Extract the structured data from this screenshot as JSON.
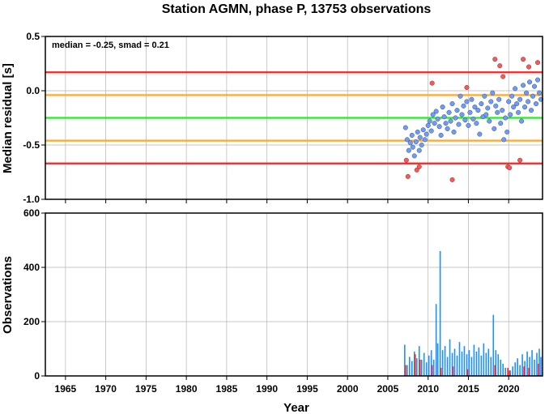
{
  "chart_data": [
    {
      "panel": "residuals",
      "type": "scatter",
      "title": "Station AGMN, phase P, 13753 observations",
      "ylabel": "Median residual [s]",
      "annotation": "median = -0.25, smad = 0.21",
      "xlim": [
        1962.5,
        2024.2
      ],
      "ylim": [
        -1.0,
        0.5
      ],
      "yticks": [
        "0.5",
        "0.0",
        "-0.5",
        "-1.0"
      ],
      "grid": true,
      "reference_lines": [
        {
          "y": 0.17,
          "color": "#ff2222"
        },
        {
          "y": -0.04,
          "color": "#ffaa22"
        },
        {
          "y": -0.25,
          "color": "#22ee22"
        },
        {
          "y": -0.46,
          "color": "#ffaa22"
        },
        {
          "y": -0.67,
          "color": "#ff2222"
        }
      ],
      "series": [
        {
          "color": "#6a9cff",
          "points": [
            [
              2007.2,
              -0.34
            ],
            [
              2007.4,
              -0.45
            ],
            [
              2007.6,
              -0.55
            ],
            [
              2007.8,
              -0.48
            ],
            [
              2008.0,
              -0.41
            ],
            [
              2008.1,
              -0.52
            ],
            [
              2008.3,
              -0.6
            ],
            [
              2008.5,
              -0.47
            ],
            [
              2008.7,
              -0.38
            ],
            [
              2008.9,
              -0.55
            ],
            [
              2009.0,
              -0.43
            ],
            [
              2009.2,
              -0.5
            ],
            [
              2009.4,
              -0.36
            ],
            [
              2009.6,
              -0.45
            ],
            [
              2009.8,
              -0.4
            ],
            [
              2010.0,
              -0.32
            ],
            [
              2010.2,
              -0.28
            ],
            [
              2010.4,
              -0.37
            ],
            [
              2010.6,
              -0.22
            ],
            [
              2010.8,
              -0.3
            ],
            [
              2011.0,
              -0.19
            ],
            [
              2011.2,
              -0.26
            ],
            [
              2011.4,
              -0.33
            ],
            [
              2011.6,
              -0.41
            ],
            [
              2011.8,
              -0.15
            ],
            [
              2012.0,
              -0.24
            ],
            [
              2012.2,
              -0.3
            ],
            [
              2012.4,
              -0.35
            ],
            [
              2012.6,
              -0.2
            ],
            [
              2012.8,
              -0.28
            ],
            [
              2013.0,
              -0.12
            ],
            [
              2013.2,
              -0.38
            ],
            [
              2013.4,
              -0.25
            ],
            [
              2013.6,
              -0.18
            ],
            [
              2013.8,
              -0.31
            ],
            [
              2014.0,
              -0.05
            ],
            [
              2014.2,
              -0.22
            ],
            [
              2014.4,
              -0.14
            ],
            [
              2014.6,
              -0.27
            ],
            [
              2014.8,
              -0.1
            ],
            [
              2015.0,
              -0.32
            ],
            [
              2015.2,
              -0.2
            ],
            [
              2015.4,
              -0.08
            ],
            [
              2015.6,
              -0.26
            ],
            [
              2015.8,
              -0.15
            ],
            [
              2016.0,
              -0.3
            ],
            [
              2016.2,
              -0.18
            ],
            [
              2016.4,
              -0.4
            ],
            [
              2016.6,
              -0.12
            ],
            [
              2016.8,
              -0.24
            ],
            [
              2017.0,
              -0.05
            ],
            [
              2017.2,
              -0.22
            ],
            [
              2017.4,
              -0.16
            ],
            [
              2017.6,
              -0.28
            ],
            [
              2017.8,
              -0.1
            ],
            [
              2018.0,
              -0.02
            ],
            [
              2018.2,
              -0.35
            ],
            [
              2018.4,
              -0.14
            ],
            [
              2018.6,
              -0.2
            ],
            [
              2018.8,
              -0.08
            ],
            [
              2019.0,
              -0.3
            ],
            [
              2019.2,
              -0.18
            ],
            [
              2019.4,
              -0.45
            ],
            [
              2019.6,
              -0.25
            ],
            [
              2019.8,
              -0.38
            ],
            [
              2020.0,
              -0.1
            ],
            [
              2020.2,
              -0.22
            ],
            [
              2020.4,
              -0.05
            ],
            [
              2020.6,
              -0.15
            ],
            [
              2020.8,
              0.02
            ],
            [
              2021.0,
              -0.12
            ],
            [
              2021.2,
              -0.2
            ],
            [
              2021.4,
              -0.08
            ],
            [
              2021.6,
              -0.28
            ],
            [
              2021.8,
              0.05
            ],
            [
              2022.0,
              -0.15
            ],
            [
              2022.2,
              -0.02
            ],
            [
              2022.4,
              -0.1
            ],
            [
              2022.6,
              0.08
            ],
            [
              2022.8,
              -0.18
            ],
            [
              2023.0,
              -0.05
            ],
            [
              2023.2,
              0.04
            ],
            [
              2023.4,
              -0.12
            ],
            [
              2023.6,
              0.1
            ],
            [
              2023.8,
              -0.02
            ],
            [
              2024.0,
              -0.08
            ]
          ]
        },
        {
          "color": "#ff5555",
          "points": [
            [
              2007.3,
              -0.64
            ],
            [
              2007.5,
              -0.79
            ],
            [
              2008.6,
              -0.73
            ],
            [
              2008.9,
              -0.7
            ],
            [
              2010.5,
              0.07
            ],
            [
              2013.0,
              -0.82
            ],
            [
              2014.8,
              0.03
            ],
            [
              2018.3,
              0.29
            ],
            [
              2018.9,
              0.23
            ],
            [
              2019.3,
              0.13
            ],
            [
              2019.9,
              -0.7
            ],
            [
              2020.1,
              -0.71
            ],
            [
              2021.8,
              0.29
            ],
            [
              2022.5,
              0.22
            ],
            [
              2023.6,
              0.26
            ],
            [
              2021.4,
              -0.64
            ]
          ]
        }
      ]
    },
    {
      "panel": "observations",
      "type": "bar",
      "ylabel": "Observations",
      "xlabel": "Year",
      "xlim": [
        1962.5,
        2024.2
      ],
      "ylim": [
        0,
        600
      ],
      "yticks": [
        "600",
        "400",
        "200",
        "0"
      ],
      "xticks": [
        "1965",
        "1970",
        "1975",
        "1980",
        "1985",
        "1990",
        "1995",
        "2000",
        "2005",
        "2010",
        "2015",
        "2020"
      ],
      "grid": true,
      "colors": {
        "normal": "#1e8fff",
        "outlier": "#ff2222"
      },
      "bars": [
        [
          2007.1,
          115
        ],
        [
          2007.4,
          40
        ],
        [
          2007.7,
          70
        ],
        [
          2008.0,
          55
        ],
        [
          2008.3,
          90
        ],
        [
          2008.6,
          65
        ],
        [
          2008.9,
          110
        ],
        [
          2009.2,
          60
        ],
        [
          2009.5,
          85
        ],
        [
          2009.8,
          50
        ],
        [
          2010.1,
          75
        ],
        [
          2010.4,
          95
        ],
        [
          2010.7,
          60
        ],
        [
          2011.0,
          265
        ],
        [
          2011.2,
          120
        ],
        [
          2011.5,
          460
        ],
        [
          2011.8,
          95
        ],
        [
          2012.1,
          110
        ],
        [
          2012.4,
          70
        ],
        [
          2012.7,
          135
        ],
        [
          2013.0,
          85
        ],
        [
          2013.3,
          100
        ],
        [
          2013.6,
          75
        ],
        [
          2013.9,
          125
        ],
        [
          2014.2,
          90
        ],
        [
          2014.5,
          110
        ],
        [
          2014.8,
          80
        ],
        [
          2015.1,
          95
        ],
        [
          2015.4,
          70
        ],
        [
          2015.7,
          115
        ],
        [
          2016.0,
          90
        ],
        [
          2016.3,
          105
        ],
        [
          2016.6,
          75
        ],
        [
          2016.9,
          120
        ],
        [
          2017.2,
          85
        ],
        [
          2017.5,
          100
        ],
        [
          2017.8,
          70
        ],
        [
          2018.1,
          225
        ],
        [
          2018.4,
          95
        ],
        [
          2018.7,
          80
        ],
        [
          2019.0,
          60
        ],
        [
          2019.3,
          45
        ],
        [
          2019.6,
          30
        ],
        [
          2019.9,
          25
        ],
        [
          2020.2,
          20
        ],
        [
          2020.5,
          35
        ],
        [
          2020.8,
          50
        ],
        [
          2021.1,
          65
        ],
        [
          2021.4,
          40
        ],
        [
          2021.7,
          80
        ],
        [
          2022.0,
          55
        ],
        [
          2022.3,
          90
        ],
        [
          2022.6,
          70
        ],
        [
          2022.9,
          95
        ],
        [
          2023.2,
          60
        ],
        [
          2023.5,
          85
        ],
        [
          2023.8,
          100
        ],
        [
          2024.0,
          70
        ]
      ],
      "red_bars": [
        [
          2007.2,
          40
        ],
        [
          2008.4,
          80
        ],
        [
          2009.0,
          60
        ],
        [
          2010.5,
          40
        ],
        [
          2011.6,
          30
        ],
        [
          2013.1,
          35
        ],
        [
          2014.9,
          25
        ],
        [
          2018.3,
          40
        ],
        [
          2019.9,
          30
        ],
        [
          2020.1,
          20
        ],
        [
          2021.9,
          35
        ],
        [
          2022.5,
          30
        ],
        [
          2023.7,
          45
        ]
      ]
    }
  ]
}
